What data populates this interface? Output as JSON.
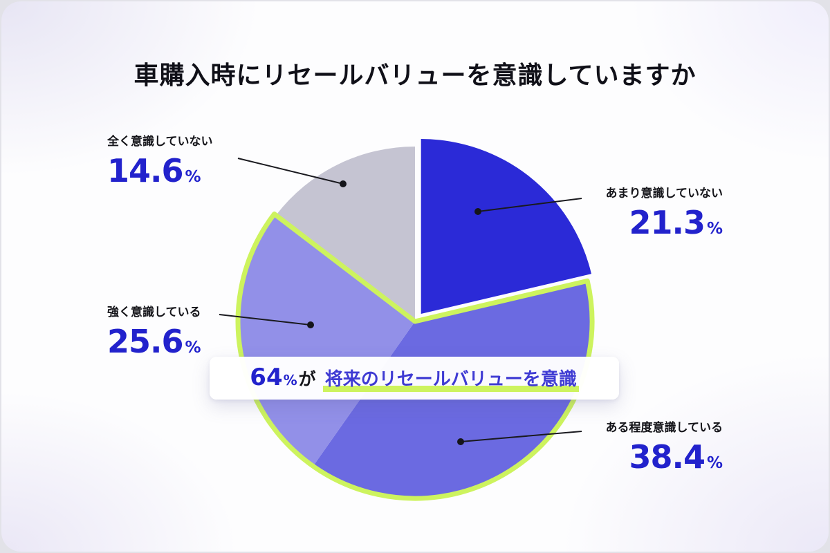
{
  "title": "車購入時にリセールバリューを意識していますか",
  "ui": {
    "percent_sign": "%"
  },
  "chart_data": {
    "type": "pie",
    "title": "車購入時にリセールバリューを意識していますか",
    "unit": "%",
    "start_angle_deg": 0,
    "direction": "clockwise",
    "slices": [
      {
        "label": "あまり意識していない",
        "value": 21.3,
        "color": "#2b2ad7",
        "exploded": true,
        "in_highlight_group": false
      },
      {
        "label": "ある程度意識している",
        "value": 38.4,
        "color": "#6b6ae1",
        "exploded": false,
        "in_highlight_group": true
      },
      {
        "label": "強く意識している",
        "value": 25.6,
        "color": "#9290e8",
        "exploded": false,
        "in_highlight_group": true
      },
      {
        "label": "全く意識していない",
        "value": 14.6,
        "color": "#c5c4d2",
        "exploded": false,
        "in_highlight_group": false
      }
    ],
    "highlight_group": {
      "total_value": 64,
      "outline_color": "#cdf35e"
    },
    "legend_position": "outside-callouts"
  },
  "annotation": {
    "value": "64",
    "percent_sign": "%",
    "particle": "が",
    "highlighted_text": "将来のリセールバリューを意識",
    "accent_color": "#2222cc",
    "highlight_color": "#cdf35e"
  }
}
